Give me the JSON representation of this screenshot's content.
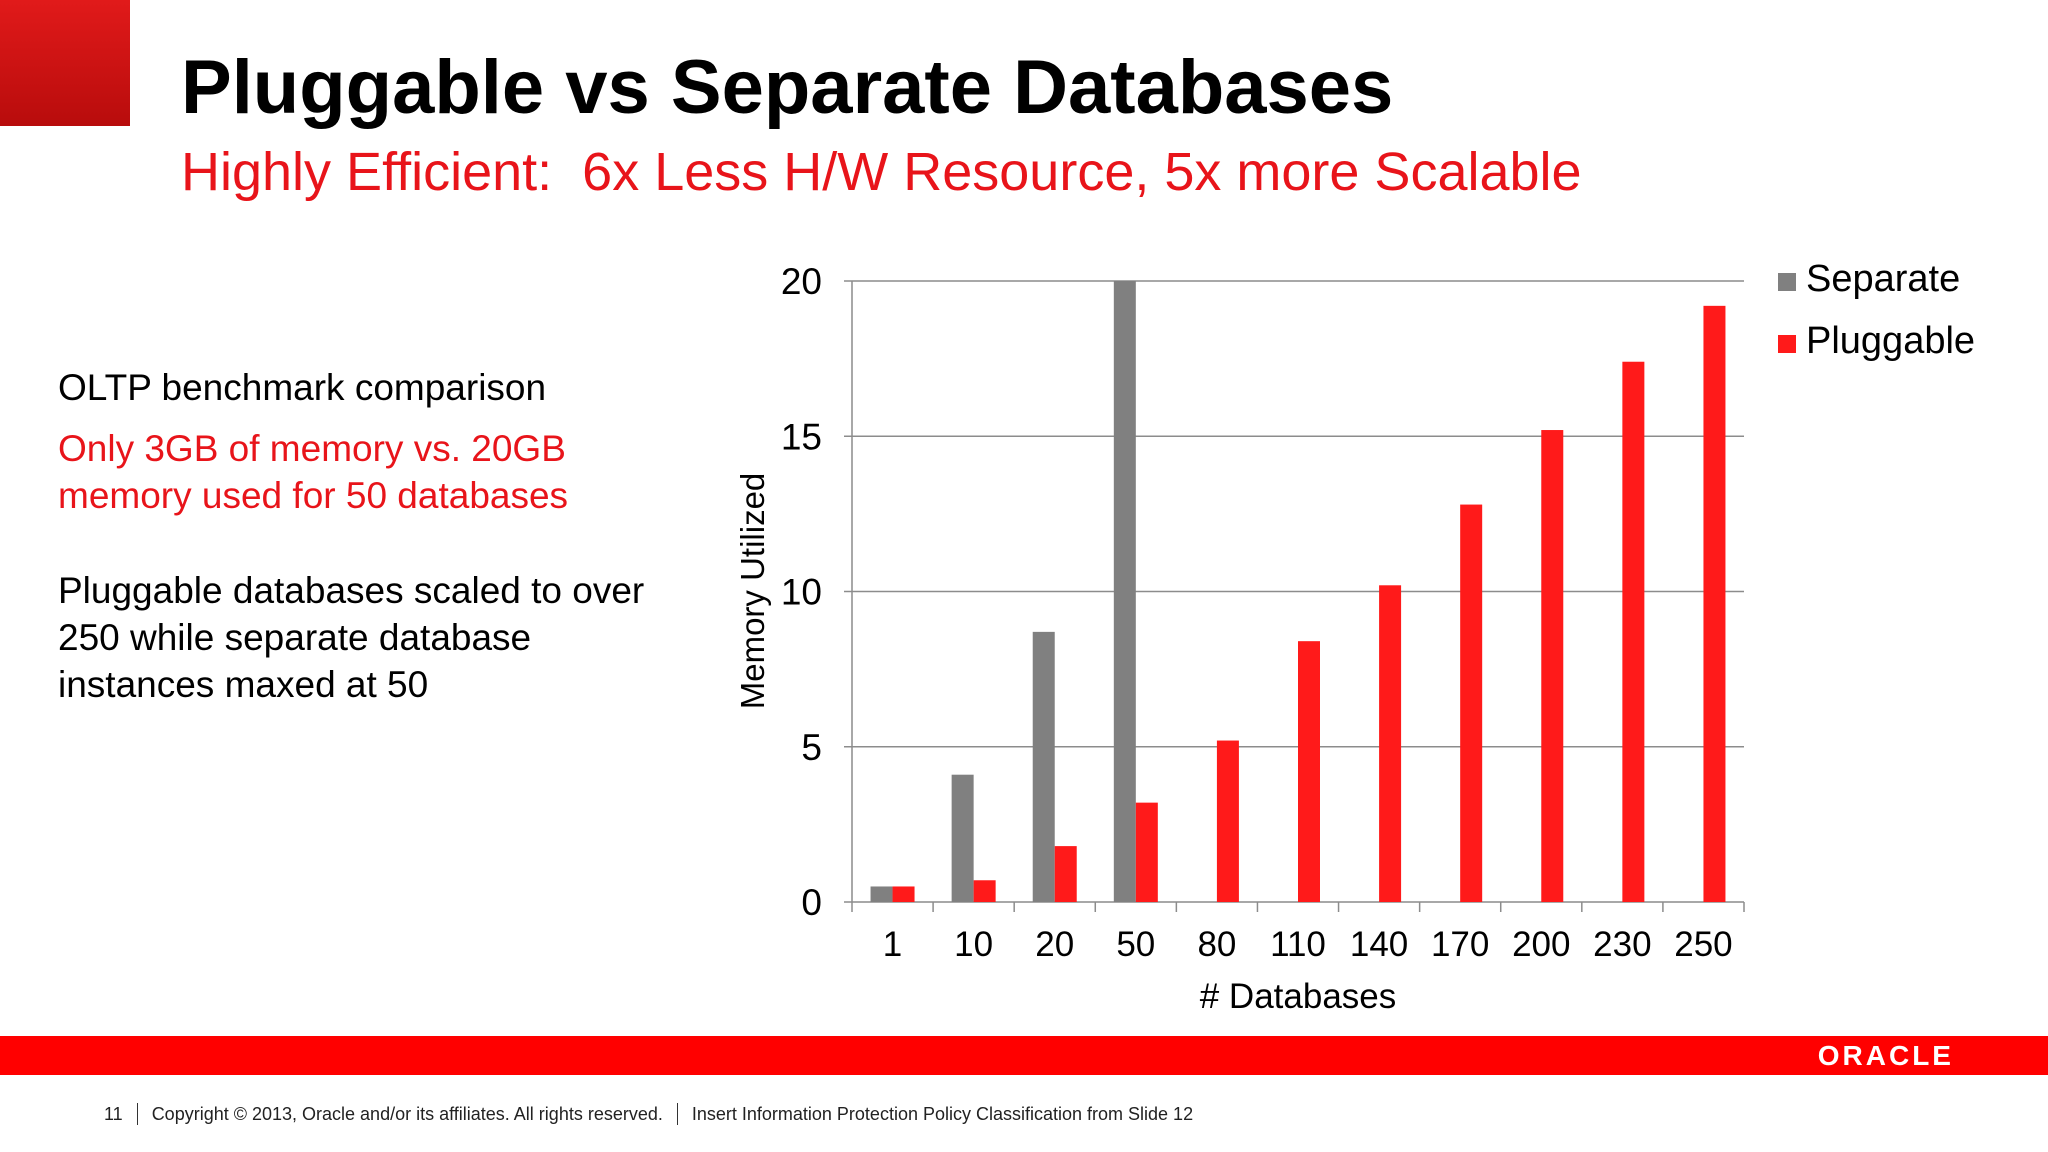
{
  "slide": {
    "title": "Pluggable vs Separate Databases",
    "subtitle": "Highly Efficient:  6x Less H/W Resource, 5x more Scalable",
    "text_1": "OLTP benchmark comparison",
    "text_2": "Only 3GB of memory vs. 20GB memory used for 50 databases",
    "text_3": "Pluggable databases scaled to over 250 while separate database instances maxed at 50"
  },
  "chart_data": {
    "type": "bar",
    "title": "",
    "xlabel": "# Databases",
    "ylabel": "Memory Utilized",
    "categories": [
      "1",
      "10",
      "20",
      "50",
      "80",
      "110",
      "140",
      "170",
      "200",
      "230",
      "250"
    ],
    "series": [
      {
        "name": "Separate",
        "color": "#808080",
        "values": [
          0.5,
          4.1,
          8.7,
          20,
          null,
          null,
          null,
          null,
          null,
          null,
          null
        ]
      },
      {
        "name": "Pluggable",
        "color": "#ff1a1a",
        "values": [
          0.5,
          0.7,
          1.8,
          3.2,
          5.2,
          8.4,
          10.2,
          12.8,
          15.2,
          17.4,
          19.2
        ]
      }
    ],
    "ylim": [
      0,
      20
    ],
    "yticks": [
      0,
      5,
      10,
      15,
      20
    ],
    "grid": true,
    "legend": "top-right"
  },
  "footer": {
    "page_number": "11",
    "copyright": "Copyright © 2013, Oracle and/or its affiliates. All rights reserved.",
    "classification": "Insert Information Protection Policy Classification from Slide 12"
  },
  "brand": {
    "logo_text": "ORACLE",
    "accent": "#ff0000"
  }
}
